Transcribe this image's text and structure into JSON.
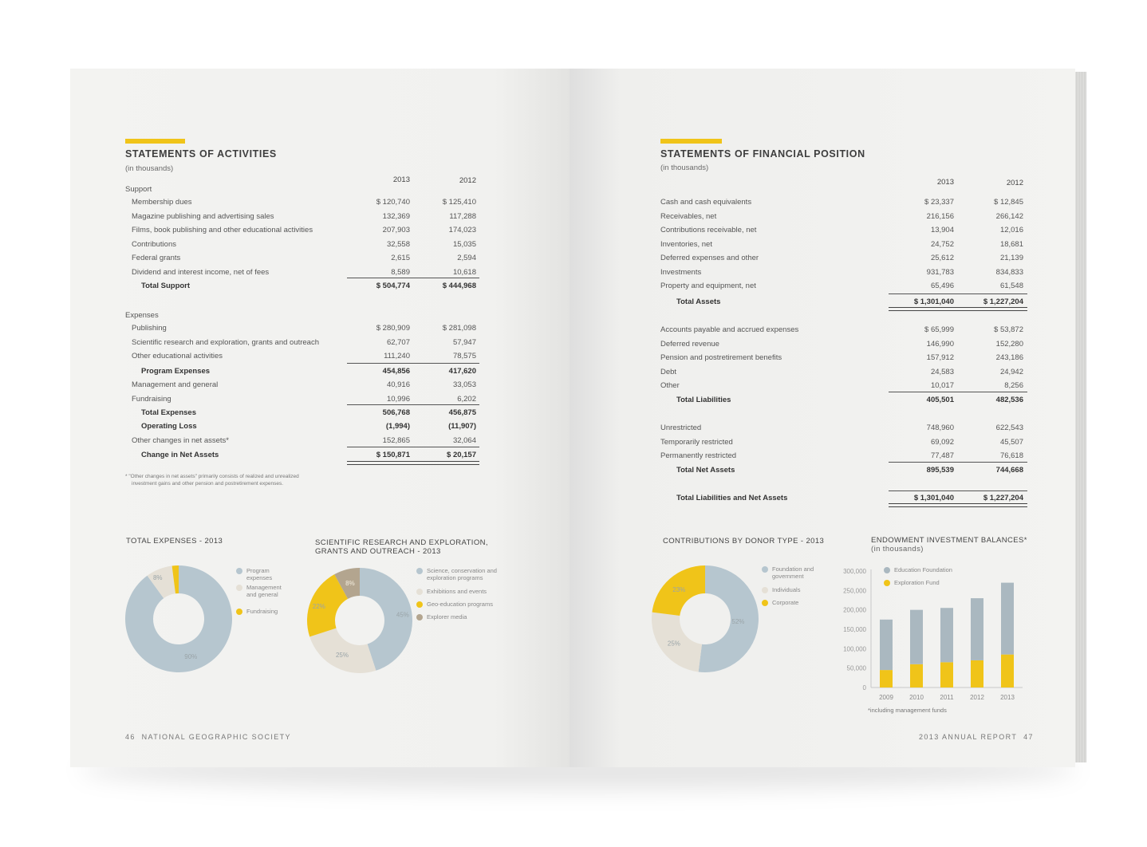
{
  "left": {
    "title": "STATEMENTS OF ACTIVITIES",
    "subtitle": "(in thousands)",
    "year_a": "2013",
    "year_b": "2012",
    "support_head": "Support",
    "support": [
      {
        "label": "Membership dues",
        "a": "$  120,740",
        "b": "$  125,410"
      },
      {
        "label": "Magazine publishing and advertising sales",
        "a": "132,369",
        "b": "117,288"
      },
      {
        "label": "Films, book publishing and other educational activities",
        "a": "207,903",
        "b": "174,023"
      },
      {
        "label": "Contributions",
        "a": "32,558",
        "b": "15,035"
      },
      {
        "label": "Federal grants",
        "a": "2,615",
        "b": "2,594"
      },
      {
        "label": "Dividend and interest income, net of fees",
        "a": "8,589",
        "b": "10,618"
      }
    ],
    "total_support": {
      "label": "Total Support",
      "a": "$ 504,774",
      "b": "$ 444,968"
    },
    "expenses_head": "Expenses",
    "expenses": [
      {
        "label": "Publishing",
        "a": "$ 280,909",
        "b": "$  281,098"
      },
      {
        "label": "Scientific research and exploration, grants and outreach",
        "a": "62,707",
        "b": "57,947"
      },
      {
        "label": "Other educational activities",
        "a": "111,240",
        "b": "78,575"
      }
    ],
    "program_expenses": {
      "label": "Program Expenses",
      "a": "454,856",
      "b": "417,620"
    },
    "expenses2": [
      {
        "label": "Management and general",
        "a": "40,916",
        "b": "33,053"
      },
      {
        "label": "Fundraising",
        "a": "10,996",
        "b": "6,202"
      }
    ],
    "total_expenses": {
      "label": "Total Expenses",
      "a": "506,768",
      "b": "456,875"
    },
    "operating_loss": {
      "label": "Operating Loss",
      "a": "(1,994)",
      "b": "(11,907)"
    },
    "other_changes": {
      "label": "Other changes in net assets*",
      "a": "152,865",
      "b": "32,064"
    },
    "change_net": {
      "label": "Change in Net Assets",
      "a": "$   150,871",
      "b": "$    20,157"
    },
    "footnote_1": "* \"Other changes in net assets\" primarily consists of realized and unrealized",
    "footnote_2": "investment gains and other pension and postretirement expenses.",
    "folio_num": "46",
    "folio_text": "NATIONAL GEOGRAPHIC SOCIETY"
  },
  "right": {
    "title": "STATEMENTS OF FINANCIAL POSITION",
    "subtitle": "(in thousands)",
    "year_a": "2013",
    "year_b": "2012",
    "assets": [
      {
        "label": "Cash and cash equivalents",
        "a": "$     23,337",
        "b": "$     12,845"
      },
      {
        "label": "Receivables, net",
        "a": "216,156",
        "b": "266,142"
      },
      {
        "label": "Contributions receivable, net",
        "a": "13,904",
        "b": "12,016"
      },
      {
        "label": "Inventories, net",
        "a": "24,752",
        "b": "18,681"
      },
      {
        "label": "Deferred expenses and other",
        "a": "25,612",
        "b": "21,139"
      },
      {
        "label": "Investments",
        "a": "931,783",
        "b": "834,833"
      },
      {
        "label": "Property and equipment, net",
        "a": "65,496",
        "b": "61,548"
      }
    ],
    "total_assets": {
      "label": "Total Assets",
      "a": "$ 1,301,040",
      "b": "$ 1,227,204"
    },
    "liabilities": [
      {
        "label": "Accounts payable and accrued expenses",
        "a": "$ 65,999",
        "b": "$ 53,872"
      },
      {
        "label": "Deferred revenue",
        "a": "146,990",
        "b": "152,280"
      },
      {
        "label": "Pension and postretirement benefits",
        "a": "157,912",
        "b": "243,186"
      },
      {
        "label": "Debt",
        "a": "24,583",
        "b": "24,942"
      },
      {
        "label": "Other",
        "a": "10,017",
        "b": "8,256"
      }
    ],
    "total_liabilities": {
      "label": "Total Liabilities",
      "a": "405,501",
      "b": "482,536"
    },
    "net_assets": [
      {
        "label": "Unrestricted",
        "a": "748,960",
        "b": "622,543"
      },
      {
        "label": "Temporarily restricted",
        "a": "69,092",
        "b": "45,507"
      },
      {
        "label": "Permanently restricted",
        "a": "77,487",
        "b": "76,618"
      }
    ],
    "total_net_assets": {
      "label": "Total Net Assets",
      "a": "895,539",
      "b": "744,668"
    },
    "total_liab_net": {
      "label": "Total Liabilities and Net Assets",
      "a": "$ 1,301,040",
      "b": "$ 1,227,204"
    },
    "endow_note": "*including management funds",
    "folio_text": "2013 ANNUAL REPORT",
    "folio_num": "47"
  },
  "colors": {
    "blue": "#b6c6cf",
    "yellow": "#f0c419",
    "beige": "#e5e0d6",
    "taupe": "#b3a58f",
    "gray": "#aab8c0"
  },
  "chart_data": [
    {
      "type": "pie",
      "title": "TOTAL EXPENSES - 2013",
      "labels": [
        "Program expenses",
        "Management and general",
        "Fundraising"
      ],
      "values": [
        90,
        8,
        2
      ],
      "value_labels": [
        "90%",
        "8%",
        "2%"
      ],
      "colors": [
        "#b6c6cf",
        "#e5e0d6",
        "#f0c419"
      ]
    },
    {
      "type": "pie",
      "title_1": "SCIENTIFIC RESEARCH AND EXPLORATION,",
      "title_2": "GRANTS AND OUTREACH - 2013",
      "labels": [
        "Science, conservation and exploration programs",
        "Exhibitions and events",
        "Geo-education programs",
        "Explorer media"
      ],
      "values": [
        45,
        25,
        22,
        8
      ],
      "value_labels": [
        "45%",
        "25%",
        "22%",
        "8%"
      ],
      "colors": [
        "#b6c6cf",
        "#e5e0d6",
        "#f0c419",
        "#b3a58f"
      ]
    },
    {
      "type": "pie",
      "title": "CONTRIBUTIONS BY DONOR TYPE - 2013",
      "labels": [
        "Foundation and government",
        "Individuals",
        "Corporate"
      ],
      "values": [
        52,
        25,
        23
      ],
      "value_labels": [
        "52%",
        "25%",
        "23%"
      ],
      "colors": [
        "#b6c6cf",
        "#e5e0d6",
        "#f0c419"
      ]
    },
    {
      "type": "bar",
      "title": "ENDOWMENT INVESTMENT BALANCES*",
      "subtitle": "(in thousands)",
      "categories": [
        "2009",
        "2010",
        "2011",
        "2012",
        "2013"
      ],
      "series": [
        {
          "name": "Education Foundation",
          "values": [
            130000,
            140000,
            140000,
            160000,
            185000
          ],
          "color": "#aab8c0"
        },
        {
          "name": "Exploration Fund",
          "values": [
            45000,
            60000,
            65000,
            70000,
            85000
          ],
          "color": "#f0c419"
        }
      ],
      "stacked": true,
      "ylim": [
        0,
        300000
      ],
      "yticks": [
        "0",
        "50,000",
        "100,000",
        "150,000",
        "200,000",
        "250,000",
        "300,000"
      ]
    }
  ]
}
